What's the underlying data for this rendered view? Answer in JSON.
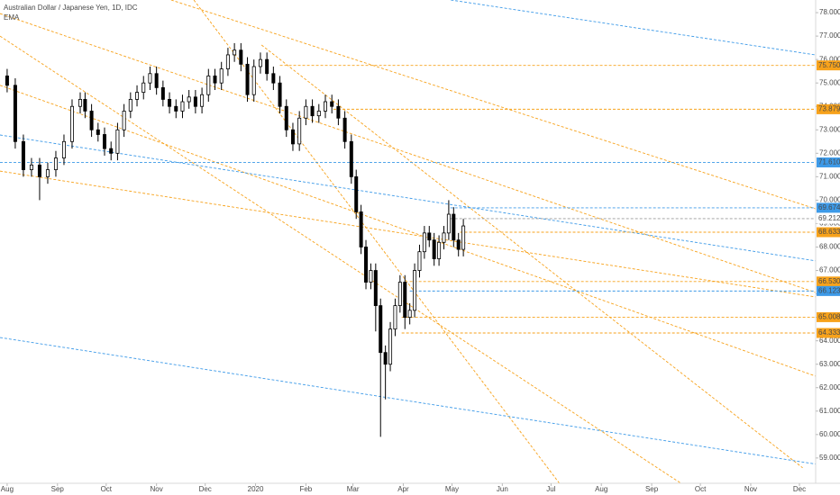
{
  "chart_data": {
    "type": "candlestick",
    "title": "Australian Dollar / Japanese Yen, 1D, IDC",
    "indicator": "EMA",
    "up_color": "#ffffff",
    "down_color": "#000000",
    "wick_color": "#000000",
    "xlim": [
      -4.4,
      498
    ],
    "ylim": [
      57.92,
      78.54
    ],
    "xticks": [
      {
        "value": 0,
        "label": "Aug"
      },
      {
        "value": 31,
        "label": "Sep"
      },
      {
        "value": 61,
        "label": "Oct"
      },
      {
        "value": 92,
        "label": "Nov"
      },
      {
        "value": 122,
        "label": "Dec"
      },
      {
        "value": 153,
        "label": "2020"
      },
      {
        "value": 184,
        "label": "Feb"
      },
      {
        "value": 213,
        "label": "Mar"
      },
      {
        "value": 244,
        "label": "Apr"
      },
      {
        "value": 274,
        "label": "May"
      },
      {
        "value": 305,
        "label": "Jun"
      },
      {
        "value": 335,
        "label": "Jul"
      },
      {
        "value": 366,
        "label": "Aug"
      },
      {
        "value": 397,
        "label": "Sep"
      },
      {
        "value": 427,
        "label": "Oct"
      },
      {
        "value": 458,
        "label": "Nov"
      },
      {
        "value": 488,
        "label": "Dec"
      }
    ],
    "yticks": [
      {
        "value": 59,
        "label": "59.000"
      },
      {
        "value": 60,
        "label": "60.000"
      },
      {
        "value": 61,
        "label": "61.000"
      },
      {
        "value": 62,
        "label": "62.000"
      },
      {
        "value": 63,
        "label": "63.000"
      },
      {
        "value": 64,
        "label": "64.000"
      },
      {
        "value": 65,
        "label": "65.000"
      },
      {
        "value": 66,
        "label": "66.000"
      },
      {
        "value": 67,
        "label": "67.000"
      },
      {
        "value": 68,
        "label": "68.000"
      },
      {
        "value": 69,
        "label": "69.000"
      },
      {
        "value": 70,
        "label": "70.000"
      },
      {
        "value": 71,
        "label": "71.000"
      },
      {
        "value": 72,
        "label": "72.000"
      },
      {
        "value": 73,
        "label": "73.000"
      },
      {
        "value": 74,
        "label": "74.000"
      },
      {
        "value": 75,
        "label": "75.000"
      },
      {
        "value": 76,
        "label": "76.000"
      },
      {
        "value": 77,
        "label": "77.000"
      },
      {
        "value": 78,
        "label": "78.000"
      }
    ],
    "x": [
      0,
      5,
      10,
      15,
      20,
      25,
      30,
      35,
      40,
      45,
      48,
      52,
      56,
      60,
      64,
      68,
      72,
      76,
      80,
      84,
      88,
      92,
      96,
      100,
      104,
      108,
      112,
      116,
      120,
      124,
      128,
      132,
      136,
      140,
      144,
      148,
      152,
      156,
      160,
      164,
      168,
      172,
      176,
      180,
      184,
      188,
      192,
      196,
      200,
      204,
      208,
      212,
      215,
      218,
      221,
      224,
      227,
      230,
      233,
      236,
      239,
      242,
      245,
      248,
      251,
      254,
      257,
      260,
      263,
      266,
      269,
      272,
      275,
      278,
      281
    ],
    "open": [
      75.3,
      74.9,
      72.5,
      71.3,
      71.5,
      71.0,
      71.3,
      71.8,
      72.5,
      74.0,
      74.3,
      73.8,
      73.0,
      72.8,
      72.2,
      72.0,
      73.0,
      73.8,
      74.3,
      74.6,
      75.0,
      75.4,
      74.8,
      74.3,
      74.0,
      73.8,
      74.2,
      74.4,
      74.0,
      74.5,
      75.3,
      75.0,
      75.6,
      76.2,
      76.4,
      75.8,
      74.5,
      75.7,
      76.0,
      75.4,
      75.0,
      74.0,
      73.0,
      72.4,
      73.5,
      74.0,
      73.6,
      73.8,
      74.2,
      74.0,
      73.5,
      72.5,
      71.0,
      69.5,
      68.0,
      66.5,
      67.0,
      65.5,
      63.5,
      63.0,
      64.5,
      65.5,
      66.5,
      65.0,
      65.3,
      67.0,
      67.8,
      68.6,
      68.3,
      67.5,
      68.2,
      68.6,
      69.4,
      68.3,
      67.9
    ],
    "high": [
      75.6,
      75.2,
      72.8,
      71.8,
      71.8,
      71.6,
      72.1,
      72.8,
      74.3,
      74.6,
      74.6,
      74.1,
      73.3,
      73.1,
      72.5,
      73.3,
      74.1,
      74.6,
      74.9,
      75.3,
      75.7,
      75.7,
      75.1,
      74.6,
      74.3,
      74.5,
      74.7,
      74.7,
      74.8,
      75.6,
      75.6,
      75.9,
      76.5,
      76.7,
      76.7,
      76.1,
      76.0,
      76.3,
      76.3,
      75.7,
      75.3,
      74.3,
      73.3,
      73.8,
      74.3,
      74.3,
      74.1,
      74.5,
      74.5,
      74.3,
      73.8,
      72.8,
      71.3,
      69.8,
      68.3,
      67.3,
      67.3,
      65.8,
      63.8,
      64.8,
      65.8,
      66.8,
      66.8,
      65.6,
      67.3,
      68.1,
      68.9,
      68.9,
      68.6,
      68.5,
      68.9,
      70.0,
      69.7,
      68.6,
      69.2
    ],
    "low": [
      74.6,
      72.2,
      71.0,
      71.0,
      70.0,
      70.7,
      71.0,
      71.5,
      72.2,
      73.7,
      73.5,
      72.7,
      72.5,
      71.9,
      71.7,
      71.7,
      72.7,
      73.5,
      74.0,
      74.3,
      74.7,
      74.5,
      74.0,
      73.7,
      73.5,
      73.5,
      73.9,
      73.7,
      73.7,
      74.2,
      74.7,
      74.7,
      75.3,
      75.9,
      75.5,
      74.2,
      74.2,
      75.4,
      75.1,
      74.7,
      73.7,
      72.7,
      72.1,
      72.1,
      73.2,
      73.3,
      73.3,
      73.5,
      73.7,
      73.2,
      72.2,
      70.7,
      69.2,
      67.7,
      66.2,
      66.2,
      64.4,
      59.9,
      61.5,
      62.7,
      64.2,
      65.2,
      64.5,
      64.7,
      65.0,
      66.7,
      67.5,
      68.0,
      67.2,
      67.2,
      67.9,
      68.3,
      68.0,
      67.6,
      67.6
    ],
    "close": [
      74.9,
      72.5,
      71.3,
      71.5,
      71.0,
      71.3,
      71.8,
      72.5,
      74.0,
      74.3,
      73.8,
      73.0,
      72.8,
      72.2,
      72.0,
      73.0,
      73.8,
      74.3,
      74.6,
      75.0,
      75.4,
      74.8,
      74.3,
      74.0,
      73.8,
      74.2,
      74.4,
      74.0,
      74.5,
      75.3,
      75.0,
      75.6,
      76.2,
      76.4,
      75.8,
      74.5,
      75.7,
      76.0,
      75.4,
      75.0,
      74.0,
      73.0,
      72.4,
      73.5,
      74.0,
      73.6,
      73.8,
      74.2,
      74.0,
      73.5,
      72.5,
      71.0,
      69.5,
      68.0,
      66.5,
      67.0,
      65.5,
      63.5,
      63.0,
      64.5,
      65.5,
      66.5,
      65.0,
      65.3,
      67.0,
      67.8,
      68.6,
      68.3,
      67.5,
      68.2,
      68.6,
      69.4,
      68.3,
      67.9,
      68.9
    ],
    "levels": [
      {
        "value": 75.75,
        "label": "75.750",
        "color": "#f7a21b",
        "x_start": 168
      },
      {
        "value": 73.879,
        "label": "73.879",
        "color": "#f7a21b",
        "x_start": 201
      },
      {
        "value": 71.61,
        "label": "71.610",
        "color": "#3d9ae8",
        "x_start": -4.4
      },
      {
        "value": 69.674,
        "label": "69.674",
        "color": "#3d9ae8",
        "x_start": 273
      },
      {
        "value": 69.212,
        "label": "69.212",
        "color": "#ffffff",
        "x_start": 273
      },
      {
        "value": 68.633,
        "label": "68.633",
        "color": "#f7a21b",
        "x_start": 279
      },
      {
        "value": 66.53,
        "label": "66.530",
        "color": "#f7a21b",
        "x_start": 248
      },
      {
        "value": 66.123,
        "label": "66.123",
        "color": "#3d9ae8",
        "x_start": 248
      },
      {
        "value": 65.008,
        "label": "65.008",
        "color": "#f7a21b",
        "x_start": 243
      },
      {
        "value": 64.333,
        "label": "64.333",
        "color": "#f7a21b",
        "x_start": 243
      }
    ],
    "trend_lines": [
      {
        "color": "#f7a21b",
        "x": [
          101,
          498
        ],
        "y": [
          78.54,
          69.63
        ]
      },
      {
        "color": "#f7a21b",
        "x": [
          -4.4,
          498
        ],
        "y": [
          77.96,
          66.06
        ]
      },
      {
        "color": "#f7a21b",
        "x": [
          -4.4,
          498
        ],
        "y": [
          74.9,
          62.49
        ]
      },
      {
        "color": "#f7a21b",
        "x": [
          -4.4,
          498
        ],
        "y": [
          71.24,
          65.87
        ]
      },
      {
        "color": "#f7a21b",
        "x": [
          115,
          345.6
        ],
        "y": [
          78.54,
          57.42
        ]
      },
      {
        "color": "#f7a21b",
        "x": [
          -4.4,
          426
        ],
        "y": [
          77.0,
          57.42
        ]
      },
      {
        "color": "#f7a21b",
        "x": [
          156.7,
          490
        ],
        "y": [
          76.62,
          58.58
        ]
      },
      {
        "color": "#3d9ae8",
        "x": [
          273.3,
          513
        ],
        "y": [
          78.54,
          76.04
        ]
      },
      {
        "color": "#3d9ae8",
        "x": [
          -4.4,
          498
        ],
        "y": [
          72.78,
          67.41
        ]
      },
      {
        "color": "#3d9ae8",
        "x": [
          -4.4,
          513
        ],
        "y": [
          64.14,
          58.58
        ]
      }
    ]
  }
}
